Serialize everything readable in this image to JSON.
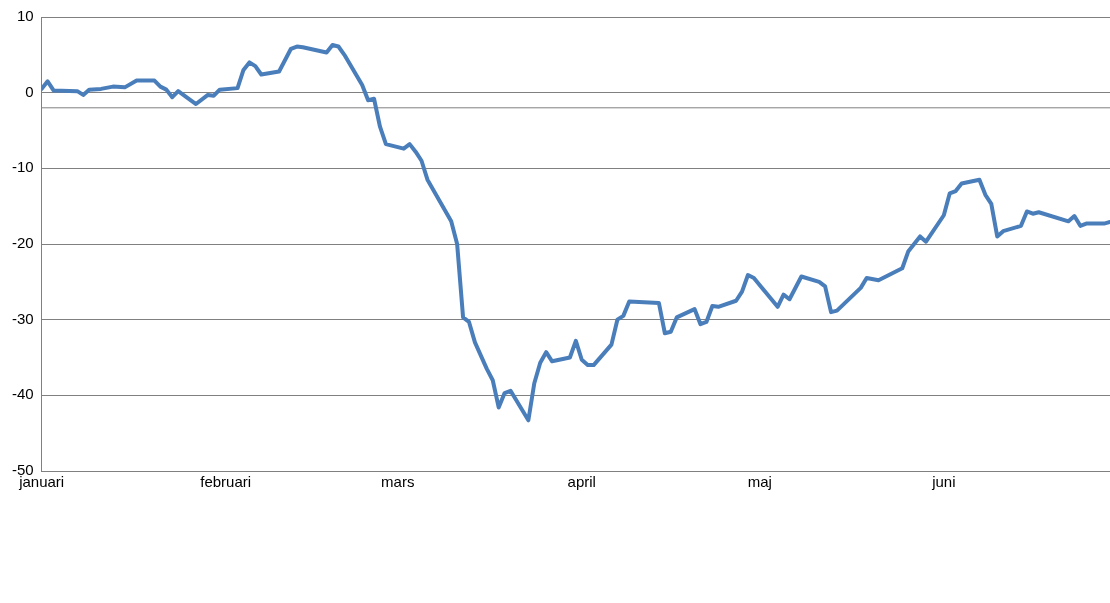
{
  "chart_data": {
    "type": "line",
    "x": [
      "--01-01",
      "--01-02",
      "--01-03",
      "--01-07",
      "--01-08",
      "--01-09",
      "--01-11",
      "--01-13",
      "--01-15",
      "--01-17",
      "--01-20",
      "--01-21",
      "--01-22",
      "--01-23",
      "--01-24",
      "--01-27",
      "--01-29",
      "--01-30",
      "--01-31",
      "--02-03",
      "--02-04",
      "--02-05",
      "--02-06",
      "--02-07",
      "--02-10",
      "--02-12",
      "--02-13",
      "--02-14",
      "--02-18",
      "--02-19",
      "--02-20",
      "--02-21",
      "--02-24",
      "--02-25",
      "--02-26",
      "--02-27",
      "--02-28",
      "--03-02",
      "--03-03",
      "--03-04",
      "--03-05",
      "--03-06",
      "--03-10",
      "--03-11",
      "--03-12",
      "--03-13",
      "--03-14",
      "--03-16",
      "--03-17",
      "--03-18",
      "--03-19",
      "--03-20",
      "--03-23",
      "--03-24",
      "--03-25",
      "--03-26",
      "--03-27",
      "--03-30",
      "--03-31",
      "--04-01",
      "--04-02",
      "--04-03",
      "--04-06",
      "--04-07",
      "--04-08",
      "--04-09",
      "--04-14",
      "--04-15",
      "--04-16",
      "--04-17",
      "--04-20",
      "--04-21",
      "--04-22",
      "--04-23",
      "--04-24",
      "--04-27",
      "--04-28",
      "--04-29",
      "--04-30",
      "--05-04",
      "--05-05",
      "--05-06",
      "--05-08",
      "--05-11",
      "--05-12",
      "--05-13",
      "--05-14",
      "--05-18",
      "--05-19",
      "--05-21",
      "--05-25",
      "--05-26",
      "--05-27",
      "--05-28",
      "--05-29",
      "--06-01",
      "--06-02",
      "--06-03",
      "--06-04",
      "--06-07",
      "--06-08",
      "--06-09",
      "--06-10",
      "--06-11",
      "--06-14",
      "--06-15",
      "--06-16",
      "--06-17",
      "--06-22",
      "--06-23",
      "--06-24",
      "--06-25",
      "--06-28",
      "--06-29"
    ],
    "series": [
      {
        "color": "#4a7ebb",
        "values": [
          0.5,
          1.5,
          0.3,
          0.2,
          -0.3,
          0.4,
          0.5,
          0.8,
          0.7,
          1.6,
          1.6,
          0.8,
          0.4,
          -0.6,
          0.2,
          -1.5,
          -0.3,
          -0.4,
          0.4,
          0.6,
          3,
          4,
          3.5,
          2.4,
          2.8,
          5.8,
          6.1,
          6,
          5.3,
          6.3,
          6.1,
          5,
          1,
          -1,
          -0.8,
          -4.5,
          -6.8,
          -7.4,
          -6.8,
          -7.8,
          -9,
          -11.5,
          -17,
          -20,
          -29.7,
          -30.3,
          -33,
          -36.5,
          -38,
          -41.6,
          -39.7,
          -39.4,
          -43.3,
          -38.4,
          -35.7,
          -34.3,
          -35.5,
          -35,
          -32.8,
          -35.3,
          -36,
          -36,
          -33.3,
          -30,
          -29.5,
          -27.6,
          -27.8,
          -31.8,
          -31.6,
          -29.7,
          -28.6,
          -30.6,
          -30.3,
          -28.2,
          -28.3,
          -27.5,
          -26.3,
          -24.1,
          -24.5,
          -28.3,
          -26.7,
          -27.3,
          -24.3,
          -25,
          -25.6,
          -29,
          -28.8,
          -25.8,
          -24.5,
          -24.8,
          -23.2,
          -21,
          -20,
          -19,
          -19.7,
          -16.2,
          -13.3,
          -13,
          -12,
          -11.5,
          -13.5,
          -14.7,
          -19,
          -18.3,
          -17.6,
          -15.7,
          -16,
          -15.8,
          -17,
          -16.3,
          -17.6,
          -17.3,
          -17.3,
          -17.1
        ]
      }
    ],
    "xlim": [
      "--01-01",
      "--06-29"
    ],
    "xticks": [
      {
        "value": "--01-01",
        "label": "januari"
      },
      {
        "value": "--02-01",
        "label": "februari"
      },
      {
        "value": "--03-01",
        "label": "mars"
      },
      {
        "value": "--04-01",
        "label": "april"
      },
      {
        "value": "--05-01",
        "label": "maj"
      },
      {
        "value": "--06-01",
        "label": "juni"
      }
    ],
    "ylim": [
      -50,
      10
    ],
    "yticks": [
      -50,
      -40,
      -30,
      -20,
      -10,
      0,
      10
    ],
    "grid": "y",
    "legend": false,
    "marker": "none",
    "line_style": "solid",
    "ref_lines": [
      {
        "axis": "y",
        "value": -2,
        "color": "#808080"
      }
    ]
  }
}
